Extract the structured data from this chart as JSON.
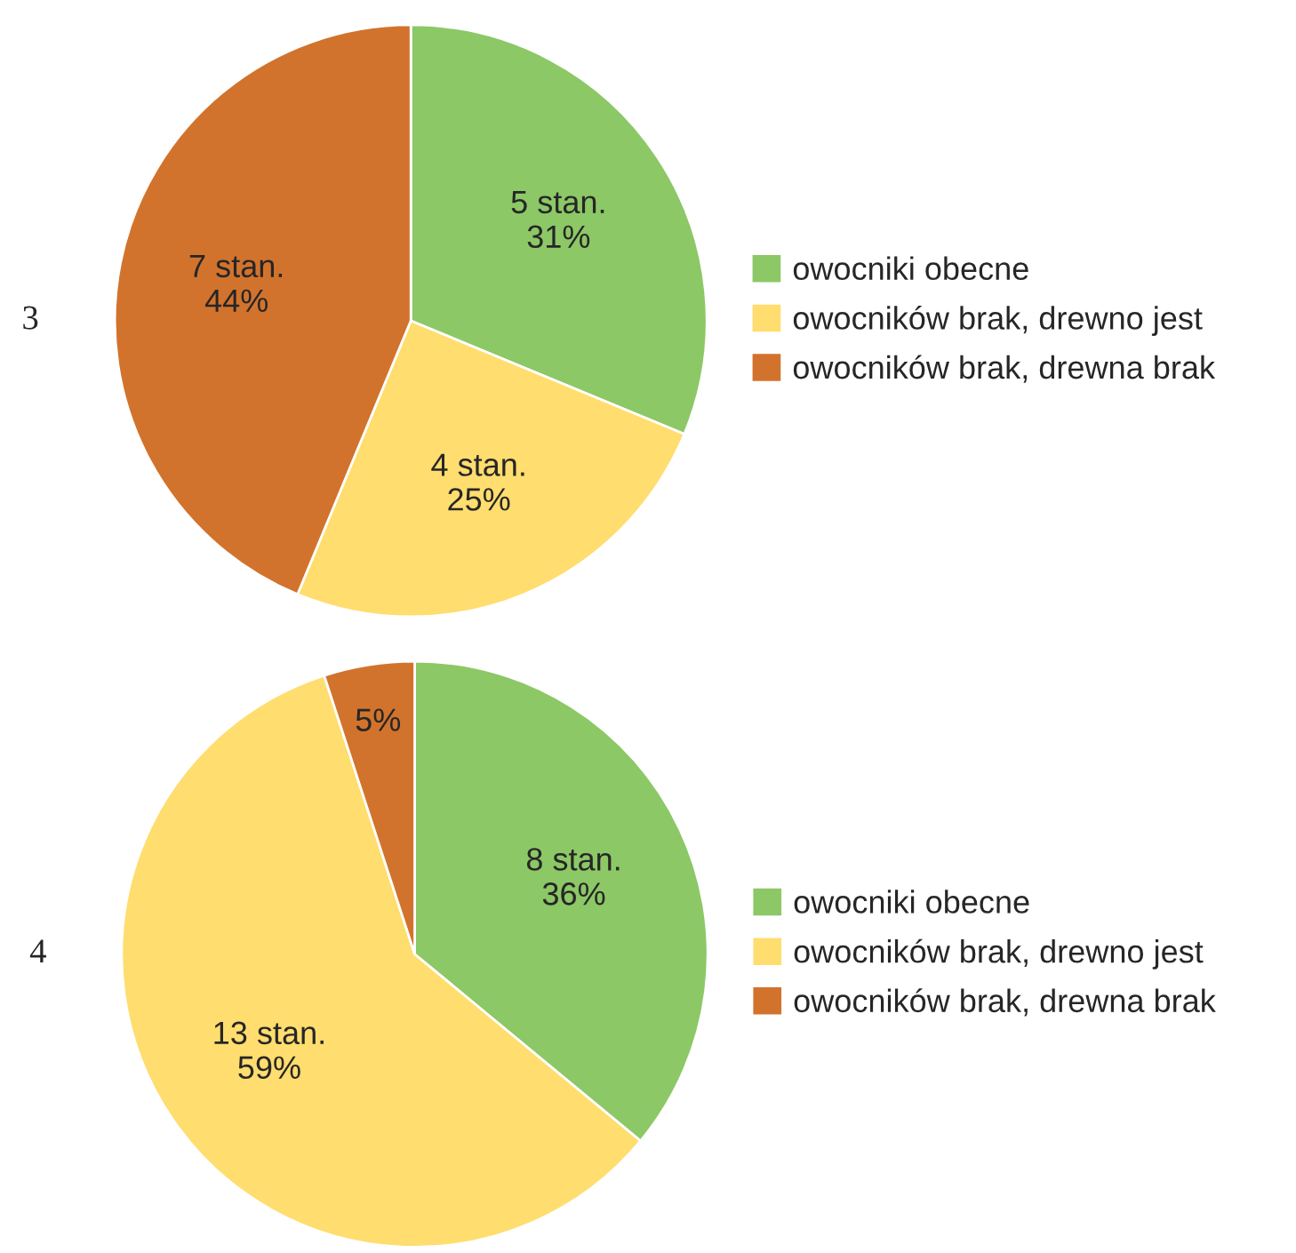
{
  "chart_data": [
    {
      "type": "pie",
      "title": "3",
      "categories": [
        "owocniki obecne",
        "owocników brak, drewno jest",
        "owocników brak, drewna brak"
      ],
      "values": [
        5,
        4,
        7
      ],
      "value_labels": [
        "5 stan.\n31%",
        "4 stan.\n25%",
        "7 stan.\n44%"
      ],
      "colors": [
        "#8cc866",
        "#ffdd6e",
        "#d2732d"
      ],
      "legend": "right"
    },
    {
      "type": "pie",
      "title": "4",
      "categories": [
        "owocniki obecne",
        "owocników brak, drewno jest",
        "owocników brak, drewna brak"
      ],
      "values": [
        36,
        59,
        5
      ],
      "value_labels": [
        "8 stan.\n36%",
        "13 stan.\n59%",
        "5%"
      ],
      "colors": [
        "#8cc866",
        "#ffdd6e",
        "#d2732d"
      ],
      "legend": "right"
    }
  ]
}
